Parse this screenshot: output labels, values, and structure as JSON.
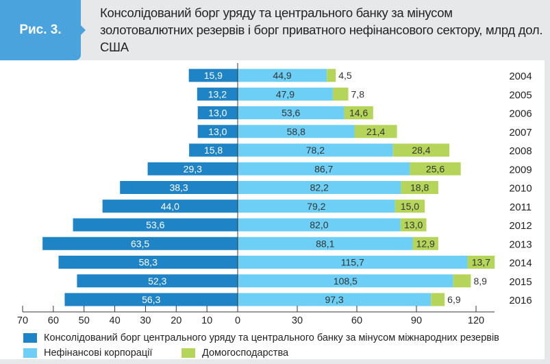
{
  "figure_label": "Рис. 3.",
  "title": "Консолідований борг уряду та центрального банку за мінусом золотовалютних резервів і борг приватного нефінансового сектору, млрд дол. США",
  "chart_data": {
    "type": "bar",
    "orientation": "horizontal",
    "categories": [
      "2004",
      "2005",
      "2006",
      "2007",
      "2008",
      "2009",
      "2010",
      "2011",
      "2012",
      "2013",
      "2014",
      "2015",
      "2016"
    ],
    "series": [
      {
        "name": "Консолідований борг центрального уряду та центрального банку за мінусом міжнародних резервів",
        "side": "left",
        "color": "#1f84c6",
        "values": [
          15.9,
          13.2,
          13.0,
          13.0,
          15.8,
          29.3,
          38.3,
          44.0,
          53.6,
          63.5,
          58.3,
          52.3,
          56.3
        ]
      },
      {
        "name": "Нефінансові корпорації",
        "side": "right",
        "color": "#6dcff6",
        "values": [
          44.9,
          47.9,
          53.6,
          58.8,
          78.2,
          86.7,
          82.2,
          79.2,
          82.0,
          88.1,
          115.7,
          108.5,
          97.3
        ]
      },
      {
        "name": "Домогосподарства",
        "side": "right",
        "color": "#b5d55a",
        "values": [
          4.5,
          7.8,
          14.6,
          21.4,
          28.4,
          25.6,
          18.8,
          15.0,
          13.0,
          12.9,
          13.7,
          8.9,
          6.9
        ]
      }
    ],
    "left_axis": {
      "ticks": [
        "70",
        "60",
        "50",
        "40",
        "30",
        "20",
        "10",
        "0"
      ],
      "range": [
        70,
        0
      ]
    },
    "right_axis": {
      "ticks": [
        "0",
        "30",
        "60",
        "90",
        "120"
      ],
      "range": [
        0,
        120
      ]
    },
    "legend_placement": "bottom"
  }
}
